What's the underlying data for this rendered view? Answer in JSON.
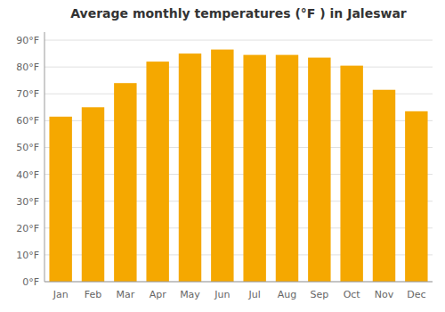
{
  "chart_data": {
    "type": "bar",
    "title": "Average monthly temperatures (°F ) in Jaleswar",
    "categories": [
      "Jan",
      "Feb",
      "Mar",
      "Apr",
      "May",
      "Jun",
      "Jul",
      "Aug",
      "Sep",
      "Oct",
      "Nov",
      "Dec"
    ],
    "values": [
      61.5,
      65.0,
      74.0,
      82.0,
      85.0,
      86.5,
      84.5,
      84.5,
      83.5,
      80.5,
      71.5,
      63.5
    ],
    "color": "#F5A800",
    "ylim": [
      0,
      93
    ],
    "yticks": [
      {
        "value": 0,
        "label": "0°F"
      },
      {
        "value": 10,
        "label": "10°F"
      },
      {
        "value": 20,
        "label": "20°F"
      },
      {
        "value": 30,
        "label": "30°F"
      },
      {
        "value": 40,
        "label": "40°F"
      },
      {
        "value": 50,
        "label": "50°F"
      },
      {
        "value": 60,
        "label": "60°F"
      },
      {
        "value": 70,
        "label": "70°F"
      },
      {
        "value": 80,
        "label": "80°F"
      },
      {
        "value": 90,
        "label": "90°F"
      }
    ],
    "grid": true
  }
}
